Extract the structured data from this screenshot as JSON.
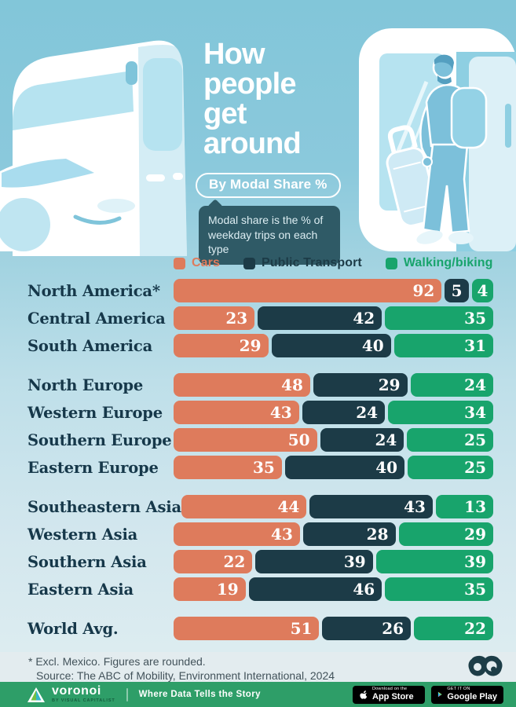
{
  "header": {
    "title": "How people get around",
    "badge": "By Modal Share %",
    "tooltip_line1": "Modal share is the % of",
    "tooltip_line2": "weekday trips on each type"
  },
  "legend": [
    {
      "label": "Cars",
      "color": "#DE7B5C"
    },
    {
      "label": "Public Transport",
      "color": "#1C3B47"
    },
    {
      "label": "Walking/biking",
      "color": "#18A46C"
    }
  ],
  "chart_data": {
    "type": "bar",
    "stacked": true,
    "orientation": "horizontal",
    "unit": "% modal share of weekday trips",
    "categories": [
      "North America*",
      "Central America",
      "South America",
      "North Europe",
      "Western Europe",
      "Southern Europe",
      "Eastern Europe",
      "Southeastern Asia",
      "Western Asia",
      "Southern Asia",
      "Eastern Asia",
      "World Avg."
    ],
    "series": [
      {
        "name": "Cars",
        "color": "#DE7B5C",
        "values": [
          92,
          23,
          29,
          48,
          43,
          50,
          35,
          44,
          43,
          22,
          19,
          51
        ]
      },
      {
        "name": "Public Transport",
        "color": "#1C3B47",
        "values": [
          5,
          42,
          40,
          29,
          24,
          24,
          40,
          43,
          28,
          39,
          46,
          26
        ]
      },
      {
        "name": "Walking/biking",
        "color": "#18A46C",
        "values": [
          4,
          35,
          31,
          24,
          34,
          25,
          25,
          13,
          29,
          39,
          35,
          22
        ]
      }
    ],
    "group_breaks_before": [
      3,
      7,
      11
    ],
    "xlim": [
      0,
      100
    ],
    "grid": false,
    "legend_position": "top"
  },
  "footer": {
    "note_line1": "* Excl. Mexico. Figures are rounded.",
    "note_line2": "Source: The ABC of Mobility, Environment International, 2024"
  },
  "brandbar": {
    "brand": "voronoi",
    "brand_sub": "BY VISUAL CAPITALIST",
    "tagline": "Where Data Tells the Story",
    "appstore_small": "Download on the",
    "appstore_big": "App Store",
    "gplay_small": "GET IT ON",
    "gplay_big": "Google Play"
  },
  "colors": {
    "background_top": "#82C6D9",
    "background_bottom": "#DDEDF0",
    "label_text": "#16384A",
    "tooltip_bg": "#2F5A66",
    "note_band_bg": "#E3ECEF",
    "brandbar_bg": "#2E9E68"
  }
}
